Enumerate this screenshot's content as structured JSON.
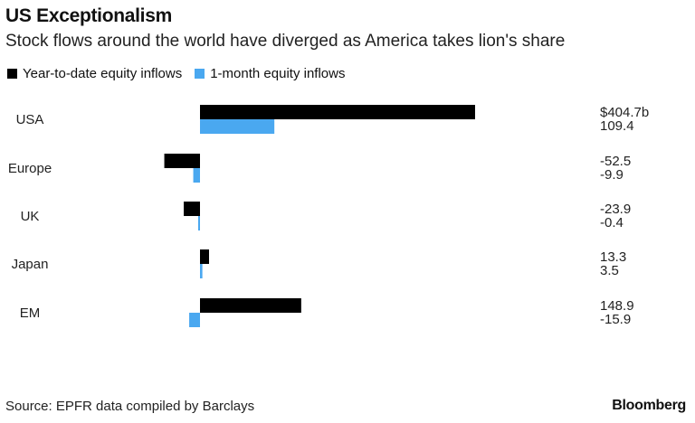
{
  "chart_data": {
    "type": "bar",
    "orientation": "horizontal",
    "title": "US Exceptionalism",
    "subtitle": "Stock flows around the world have diverged as America takes lion's share",
    "categories": [
      "USA",
      "Europe",
      "UK",
      "Japan",
      "EM"
    ],
    "series": [
      {
        "name": "Year-to-date equity inflows",
        "color": "#000000",
        "values": [
          404.7,
          -52.5,
          -23.9,
          13.3,
          148.9
        ],
        "labels": [
          "$404.7b",
          "-52.5",
          "-23.9",
          "13.3",
          "148.9"
        ]
      },
      {
        "name": "1-month equity inflows",
        "color": "#4aa8f0",
        "values": [
          109.4,
          -9.9,
          -0.4,
          3.5,
          -15.9
        ],
        "labels": [
          "109.4",
          "-9.9",
          "-0.4",
          "3.5",
          "-15.9"
        ]
      }
    ],
    "unit": "$ billions",
    "xlim": [
      -60,
      420
    ],
    "grid": false,
    "legend": "top-left",
    "source": "Source: EPFR data compiled by Barclays",
    "brand": "Bloomberg"
  }
}
